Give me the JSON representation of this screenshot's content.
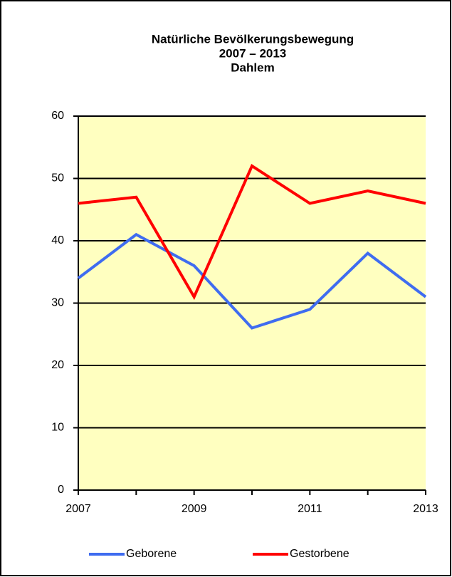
{
  "chart_data": {
    "type": "line",
    "title": [
      "Natürliche Bevölkerungsbewegung",
      "2007 – 2013",
      "Dahlem"
    ],
    "x": [
      2007,
      2008,
      2009,
      2010,
      2011,
      2012,
      2013
    ],
    "series": [
      {
        "name": "Geborene",
        "color": "#3f6cf0",
        "values": [
          34,
          41,
          36,
          26,
          29,
          38,
          31
        ]
      },
      {
        "name": "Gestorbene",
        "color": "#ff0000",
        "values": [
          46,
          47,
          31,
          52,
          46,
          48,
          46
        ]
      }
    ],
    "xlim": [
      2007,
      2013
    ],
    "xticks": [
      2007,
      2009,
      2011,
      2013
    ],
    "ylim": [
      0,
      60
    ],
    "yticks": [
      0,
      10,
      20,
      30,
      40,
      50,
      60
    ],
    "grid": true,
    "legend": "bottom",
    "plot_background": "#ffffc0"
  }
}
